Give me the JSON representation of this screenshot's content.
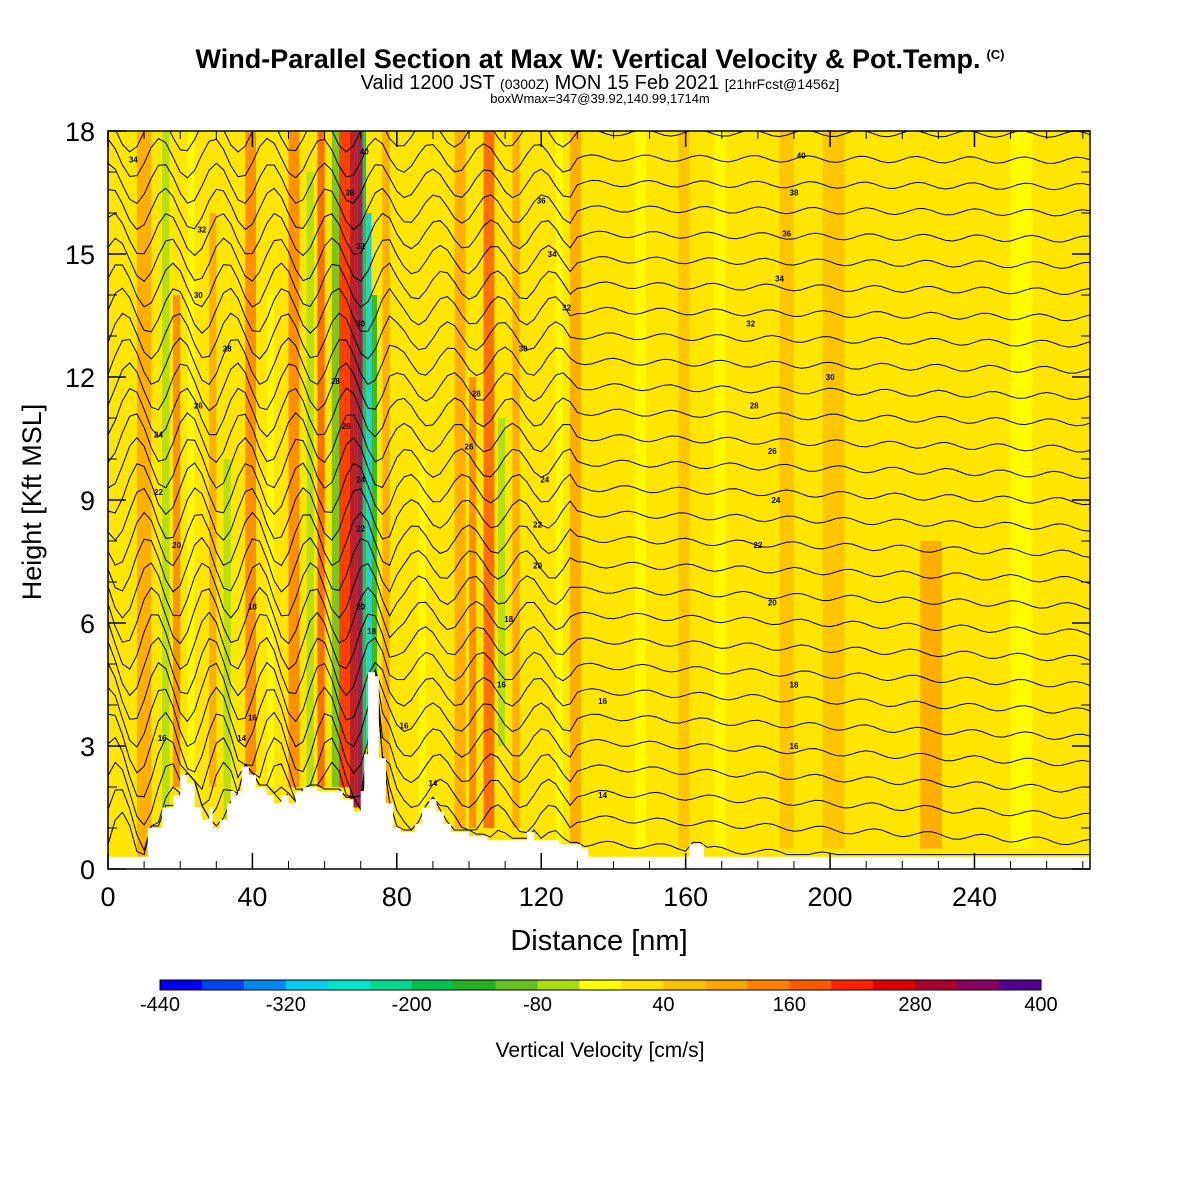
{
  "header": {
    "title": "Wind-Parallel Section at Max W: Vertical Velocity & Pot.Temp.",
    "title_mark": "(C)",
    "subtitle_main": "Valid 1200 JST",
    "subtitle_zulu": "(0300Z)",
    "subtitle_date": "MON 15 Feb 2021",
    "subtitle_fcst": "[21hrFcst@1456z]",
    "info": "boxWmax=347@39.92,140.99,1714m"
  },
  "chart_data": {
    "type": "heatmap",
    "title": "Wind-Parallel Section at Max W: Vertical Velocity & Pot.Temp.",
    "xlabel": "Distance [nm]",
    "ylabel": "Height [Kft MSL]",
    "xlim": [
      0,
      272
    ],
    "ylim": [
      0,
      18
    ],
    "x_ticks": [
      0,
      40,
      80,
      120,
      160,
      200,
      240
    ],
    "y_ticks": [
      0,
      3,
      6,
      9,
      12,
      15,
      18
    ],
    "colorbar": {
      "label": "Vertical Velocity [cm/s]",
      "min": -440,
      "max": 400,
      "step": 40,
      "tick_values": [
        -440,
        -320,
        -200,
        -80,
        40,
        160,
        280,
        400
      ],
      "colors": [
        "#0000ee",
        "#0044f0",
        "#0088f0",
        "#00ccf0",
        "#00e8cc",
        "#00d890",
        "#00c050",
        "#22b020",
        "#66c020",
        "#aadd10",
        "#ffff00",
        "#ffe000",
        "#ffc000",
        "#ffa500",
        "#ff8000",
        "#ff5a00",
        "#ff2000",
        "#dd0000",
        "#aa0030",
        "#880060",
        "#550090"
      ]
    },
    "updraft_core": {
      "x_range": [
        67,
        73
      ],
      "peak_w": 347,
      "downdraft_side_min": -320
    },
    "theta_labels": [
      {
        "x": 7,
        "y": 17.3,
        "text": "34"
      },
      {
        "x": 26,
        "y": 15.6,
        "text": "32"
      },
      {
        "x": 25,
        "y": 14.0,
        "text": "30"
      },
      {
        "x": 33,
        "y": 12.7,
        "text": "28"
      },
      {
        "x": 25,
        "y": 11.3,
        "text": "26"
      },
      {
        "x": 14,
        "y": 10.6,
        "text": "24"
      },
      {
        "x": 14,
        "y": 9.2,
        "text": "22"
      },
      {
        "x": 19,
        "y": 7.9,
        "text": "20"
      },
      {
        "x": 40,
        "y": 6.4,
        "text": "18"
      },
      {
        "x": 40,
        "y": 3.7,
        "text": "16"
      },
      {
        "x": 15,
        "y": 3.2,
        "text": "16"
      },
      {
        "x": 37,
        "y": 3.2,
        "text": "14"
      },
      {
        "x": 71,
        "y": 17.5,
        "text": "40"
      },
      {
        "x": 67,
        "y": 16.5,
        "text": "36"
      },
      {
        "x": 70,
        "y": 15.2,
        "text": "32"
      },
      {
        "x": 70,
        "y": 13.3,
        "text": "30"
      },
      {
        "x": 63,
        "y": 11.9,
        "text": "28"
      },
      {
        "x": 66,
        "y": 10.8,
        "text": "26"
      },
      {
        "x": 70,
        "y": 9.5,
        "text": "24"
      },
      {
        "x": 70,
        "y": 8.3,
        "text": "22"
      },
      {
        "x": 70,
        "y": 6.4,
        "text": "20"
      },
      {
        "x": 73,
        "y": 5.8,
        "text": "18"
      },
      {
        "x": 82,
        "y": 3.5,
        "text": "16"
      },
      {
        "x": 90,
        "y": 2.1,
        "text": "14"
      },
      {
        "x": 120,
        "y": 16.3,
        "text": "36"
      },
      {
        "x": 123,
        "y": 15.0,
        "text": "34"
      },
      {
        "x": 127,
        "y": 13.7,
        "text": "32"
      },
      {
        "x": 115,
        "y": 12.7,
        "text": "30"
      },
      {
        "x": 102,
        "y": 11.6,
        "text": "28"
      },
      {
        "x": 100,
        "y": 10.3,
        "text": "26"
      },
      {
        "x": 121,
        "y": 9.5,
        "text": "24"
      },
      {
        "x": 119,
        "y": 8.4,
        "text": "22"
      },
      {
        "x": 119,
        "y": 7.4,
        "text": "20"
      },
      {
        "x": 111,
        "y": 6.1,
        "text": "18"
      },
      {
        "x": 109,
        "y": 4.5,
        "text": "16"
      },
      {
        "x": 137,
        "y": 4.1,
        "text": "16"
      },
      {
        "x": 192,
        "y": 17.4,
        "text": "40"
      },
      {
        "x": 190,
        "y": 16.5,
        "text": "38"
      },
      {
        "x": 188,
        "y": 15.5,
        "text": "36"
      },
      {
        "x": 186,
        "y": 14.4,
        "text": "34"
      },
      {
        "x": 178,
        "y": 13.3,
        "text": "32"
      },
      {
        "x": 200,
        "y": 12.0,
        "text": "30"
      },
      {
        "x": 179,
        "y": 11.3,
        "text": "28"
      },
      {
        "x": 184,
        "y": 10.2,
        "text": "26"
      },
      {
        "x": 185,
        "y": 9.0,
        "text": "24"
      },
      {
        "x": 180,
        "y": 7.9,
        "text": "22"
      },
      {
        "x": 184,
        "y": 6.5,
        "text": "20"
      },
      {
        "x": 190,
        "y": 4.5,
        "text": "18"
      },
      {
        "x": 190,
        "y": 3.0,
        "text": "16"
      },
      {
        "x": 137,
        "y": 1.8,
        "text": "14"
      }
    ]
  }
}
